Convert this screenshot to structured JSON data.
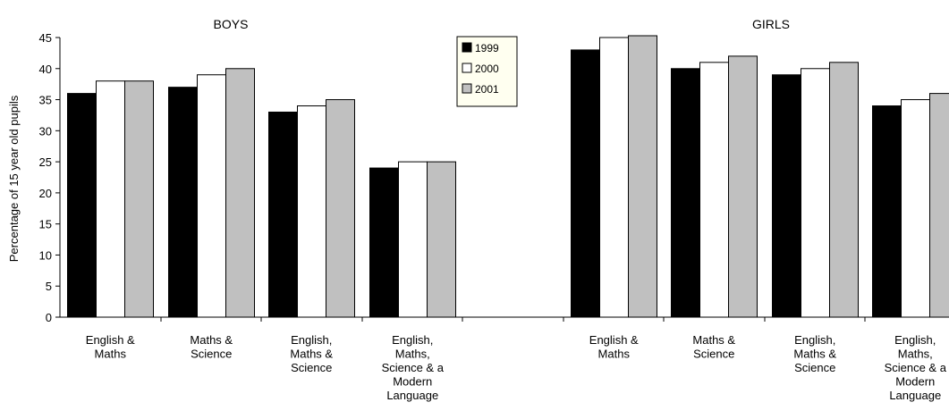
{
  "chart_data": {
    "type": "bar",
    "ylabel": "Percentage of 15 year old pupils",
    "ylim": [
      0,
      45
    ],
    "yticks": [
      0,
      5,
      10,
      15,
      20,
      25,
      30,
      35,
      40,
      45
    ],
    "grid": false,
    "legend_placement": "top-center",
    "series": [
      {
        "name": "1999",
        "color": "#000000"
      },
      {
        "name": "2000",
        "color": "#ffffff"
      },
      {
        "name": "2001",
        "color": "#c0c0c0"
      }
    ],
    "panels": [
      {
        "title": "BOYS",
        "categories": [
          [
            "English &",
            "Maths"
          ],
          [
            "Maths &",
            "Science"
          ],
          [
            "English,",
            "Maths &",
            "Science"
          ],
          [
            "English,",
            "Maths,",
            "Science & a",
            "Modern",
            "Language"
          ]
        ],
        "values": [
          [
            36,
            38,
            38
          ],
          [
            37,
            39,
            40
          ],
          [
            33,
            34,
            35
          ],
          [
            24,
            25,
            25
          ]
        ]
      },
      {
        "title": "GIRLS",
        "categories": [
          [
            "English &",
            "Maths"
          ],
          [
            "Maths &",
            "Science"
          ],
          [
            "English,",
            "Maths &",
            "Science"
          ],
          [
            "English,",
            "Maths,",
            "Science & a",
            "Modern",
            "Language"
          ]
        ],
        "values": [
          [
            43,
            45,
            46
          ],
          [
            40,
            41,
            42
          ],
          [
            39,
            40,
            41
          ],
          [
            34,
            35,
            36
          ]
        ]
      }
    ]
  }
}
